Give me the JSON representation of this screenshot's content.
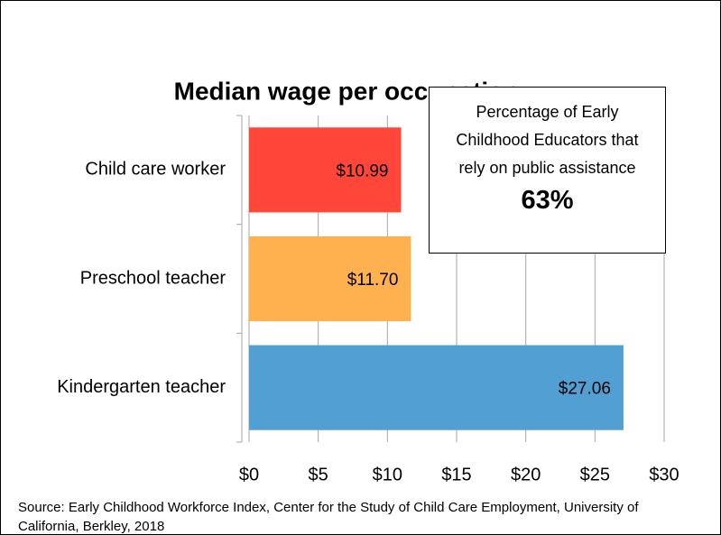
{
  "chart_data": {
    "type": "bar",
    "orientation": "horizontal",
    "title": "Median wage per occupation",
    "categories": [
      "Child care worker",
      "Preschool teacher",
      "Kindergarten teacher"
    ],
    "values": [
      10.99,
      11.7,
      27.06
    ],
    "value_labels": [
      "$10.99",
      "$11.70",
      "$27.06"
    ],
    "colors": [
      "#ff4639",
      "#ffb14f",
      "#529fd3"
    ],
    "xlim": [
      0,
      30
    ],
    "xticks": [
      {
        "value": 0,
        "label": "$0"
      },
      {
        "value": 5,
        "label": "$5"
      },
      {
        "value": 10,
        "label": "$10"
      },
      {
        "value": 15,
        "label": "$15"
      },
      {
        "value": 20,
        "label": "$20"
      },
      {
        "value": 25,
        "label": "$25"
      },
      {
        "value": 30,
        "label": "$30"
      }
    ],
    "grid": true,
    "annotation": {
      "text": "Percentage of Early Childhood Educators that rely on public assistance",
      "value": "63%"
    },
    "source": "Source: Early Childhood Workforce Index, Center for the Study of Child Care Employment, University of California, Berkley, 2018"
  }
}
